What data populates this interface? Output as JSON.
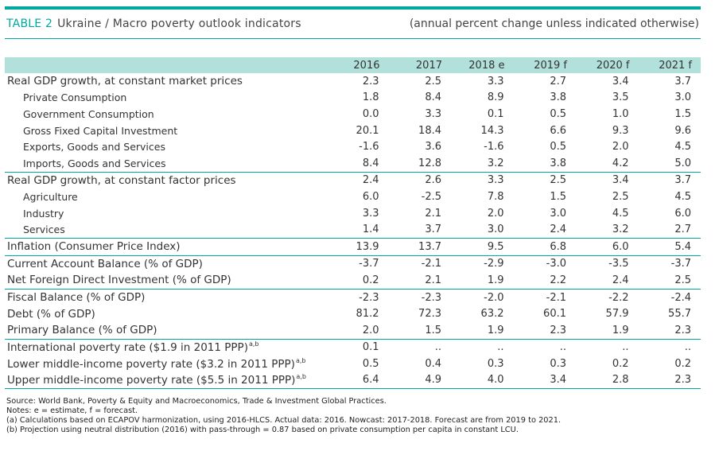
{
  "title": {
    "label": "TABLE 2",
    "text": "Ukraine / Macro poverty outlook indicators",
    "units_note": "(annual percent change unless indicated otherwise)"
  },
  "columns": [
    "2016",
    "2017",
    "2018 e",
    "2019 f",
    "2020 f",
    "2021 f"
  ],
  "rows": [
    {
      "label": "Real GDP growth, at constant market prices",
      "indent": false,
      "values": [
        "2.3",
        "2.5",
        "3.3",
        "2.7",
        "3.4",
        "3.7"
      ]
    },
    {
      "label": "Private Consumption",
      "indent": true,
      "values": [
        "1.8",
        "8.4",
        "8.9",
        "3.8",
        "3.5",
        "3.0"
      ]
    },
    {
      "label": "Government Consumption",
      "indent": true,
      "values": [
        "0.0",
        "3.3",
        "0.1",
        "0.5",
        "1.0",
        "1.5"
      ]
    },
    {
      "label": "Gross Fixed Capital Investment",
      "indent": true,
      "values": [
        "20.1",
        "18.4",
        "14.3",
        "6.6",
        "9.3",
        "9.6"
      ]
    },
    {
      "label": "Exports, Goods and Services",
      "indent": true,
      "values": [
        "-1.6",
        "3.6",
        "-1.6",
        "0.5",
        "2.0",
        "4.5"
      ]
    },
    {
      "label": "Imports, Goods and Services",
      "indent": true,
      "values": [
        "8.4",
        "12.8",
        "3.2",
        "3.8",
        "4.2",
        "5.0"
      ]
    },
    {
      "label": "Real GDP growth, at constant factor prices",
      "indent": false,
      "values": [
        "2.4",
        "2.6",
        "3.3",
        "2.5",
        "3.4",
        "3.7"
      ]
    },
    {
      "label": "Agriculture",
      "indent": true,
      "values": [
        "6.0",
        "-2.5",
        "7.8",
        "1.5",
        "2.5",
        "4.5"
      ]
    },
    {
      "label": "Industry",
      "indent": true,
      "values": [
        "3.3",
        "2.1",
        "2.0",
        "3.0",
        "4.5",
        "6.0"
      ]
    },
    {
      "label": "Services",
      "indent": true,
      "values": [
        "1.4",
        "3.7",
        "3.0",
        "2.4",
        "3.2",
        "2.7"
      ]
    },
    {
      "label": "Inflation (Consumer Price Index)",
      "indent": false,
      "values": [
        "13.9",
        "13.7",
        "9.5",
        "6.8",
        "6.0",
        "5.4"
      ]
    },
    {
      "label": "Current Account Balance (% of GDP)",
      "indent": false,
      "values": [
        "-3.7",
        "-2.1",
        "-2.9",
        "-3.0",
        "-3.5",
        "-3.7"
      ]
    },
    {
      "label": "Net Foreign Direct Investment (% of GDP)",
      "indent": false,
      "values": [
        "0.2",
        "2.1",
        "1.9",
        "2.2",
        "2.4",
        "2.5"
      ]
    },
    {
      "label": "Fiscal Balance (% of GDP)",
      "indent": false,
      "values": [
        "-2.3",
        "-2.3",
        "-2.0",
        "-2.1",
        "-2.2",
        "-2.4"
      ]
    },
    {
      "label": "Debt (% of GDP)",
      "indent": false,
      "values": [
        "81.2",
        "72.3",
        "63.2",
        "60.1",
        "57.9",
        "55.7"
      ]
    },
    {
      "label": "Primary Balance (% of GDP)",
      "indent": false,
      "values": [
        "2.0",
        "1.5",
        "1.9",
        "2.3",
        "1.9",
        "2.3"
      ]
    },
    {
      "label": "International poverty rate ($1.9 in 2011 PPP)",
      "sup": "a,b",
      "indent": false,
      "values": [
        "0.1",
        "..",
        "..",
        "..",
        "..",
        ".."
      ]
    },
    {
      "label": "Lower middle-income poverty rate ($3.2 in 2011 PPP)",
      "sup": "a,b",
      "indent": false,
      "values": [
        "0.5",
        "0.4",
        "0.3",
        "0.3",
        "0.2",
        "0.2"
      ]
    },
    {
      "label": "Upper middle-income poverty rate ($5.5 in 2011 PPP)",
      "sup": "a,b",
      "indent": false,
      "values": [
        "6.4",
        "4.9",
        "4.0",
        "3.4",
        "2.8",
        "2.3"
      ]
    }
  ],
  "group_end_rows": [
    5,
    9,
    10,
    12,
    15,
    18
  ],
  "notes": [
    "Source: World Bank, Poverty & Equity and Macroeconomics, Trade & Investment Global Practices.",
    "Notes: e = estimate, f = forecast.",
    "(a) Calculations based on ECAPOV harmonization, using 2016-HLCS. Actual data: 2016. Nowcast: 2017-2018. Forecast are from 2019 to 2021.",
    "(b) Projection using neutral distribution (2016) with pass-through = 0.87 based on private consumption per capita in constant LCU."
  ],
  "colors": {
    "accent": "#00a99d",
    "header_bg": "#b2e1dc"
  }
}
